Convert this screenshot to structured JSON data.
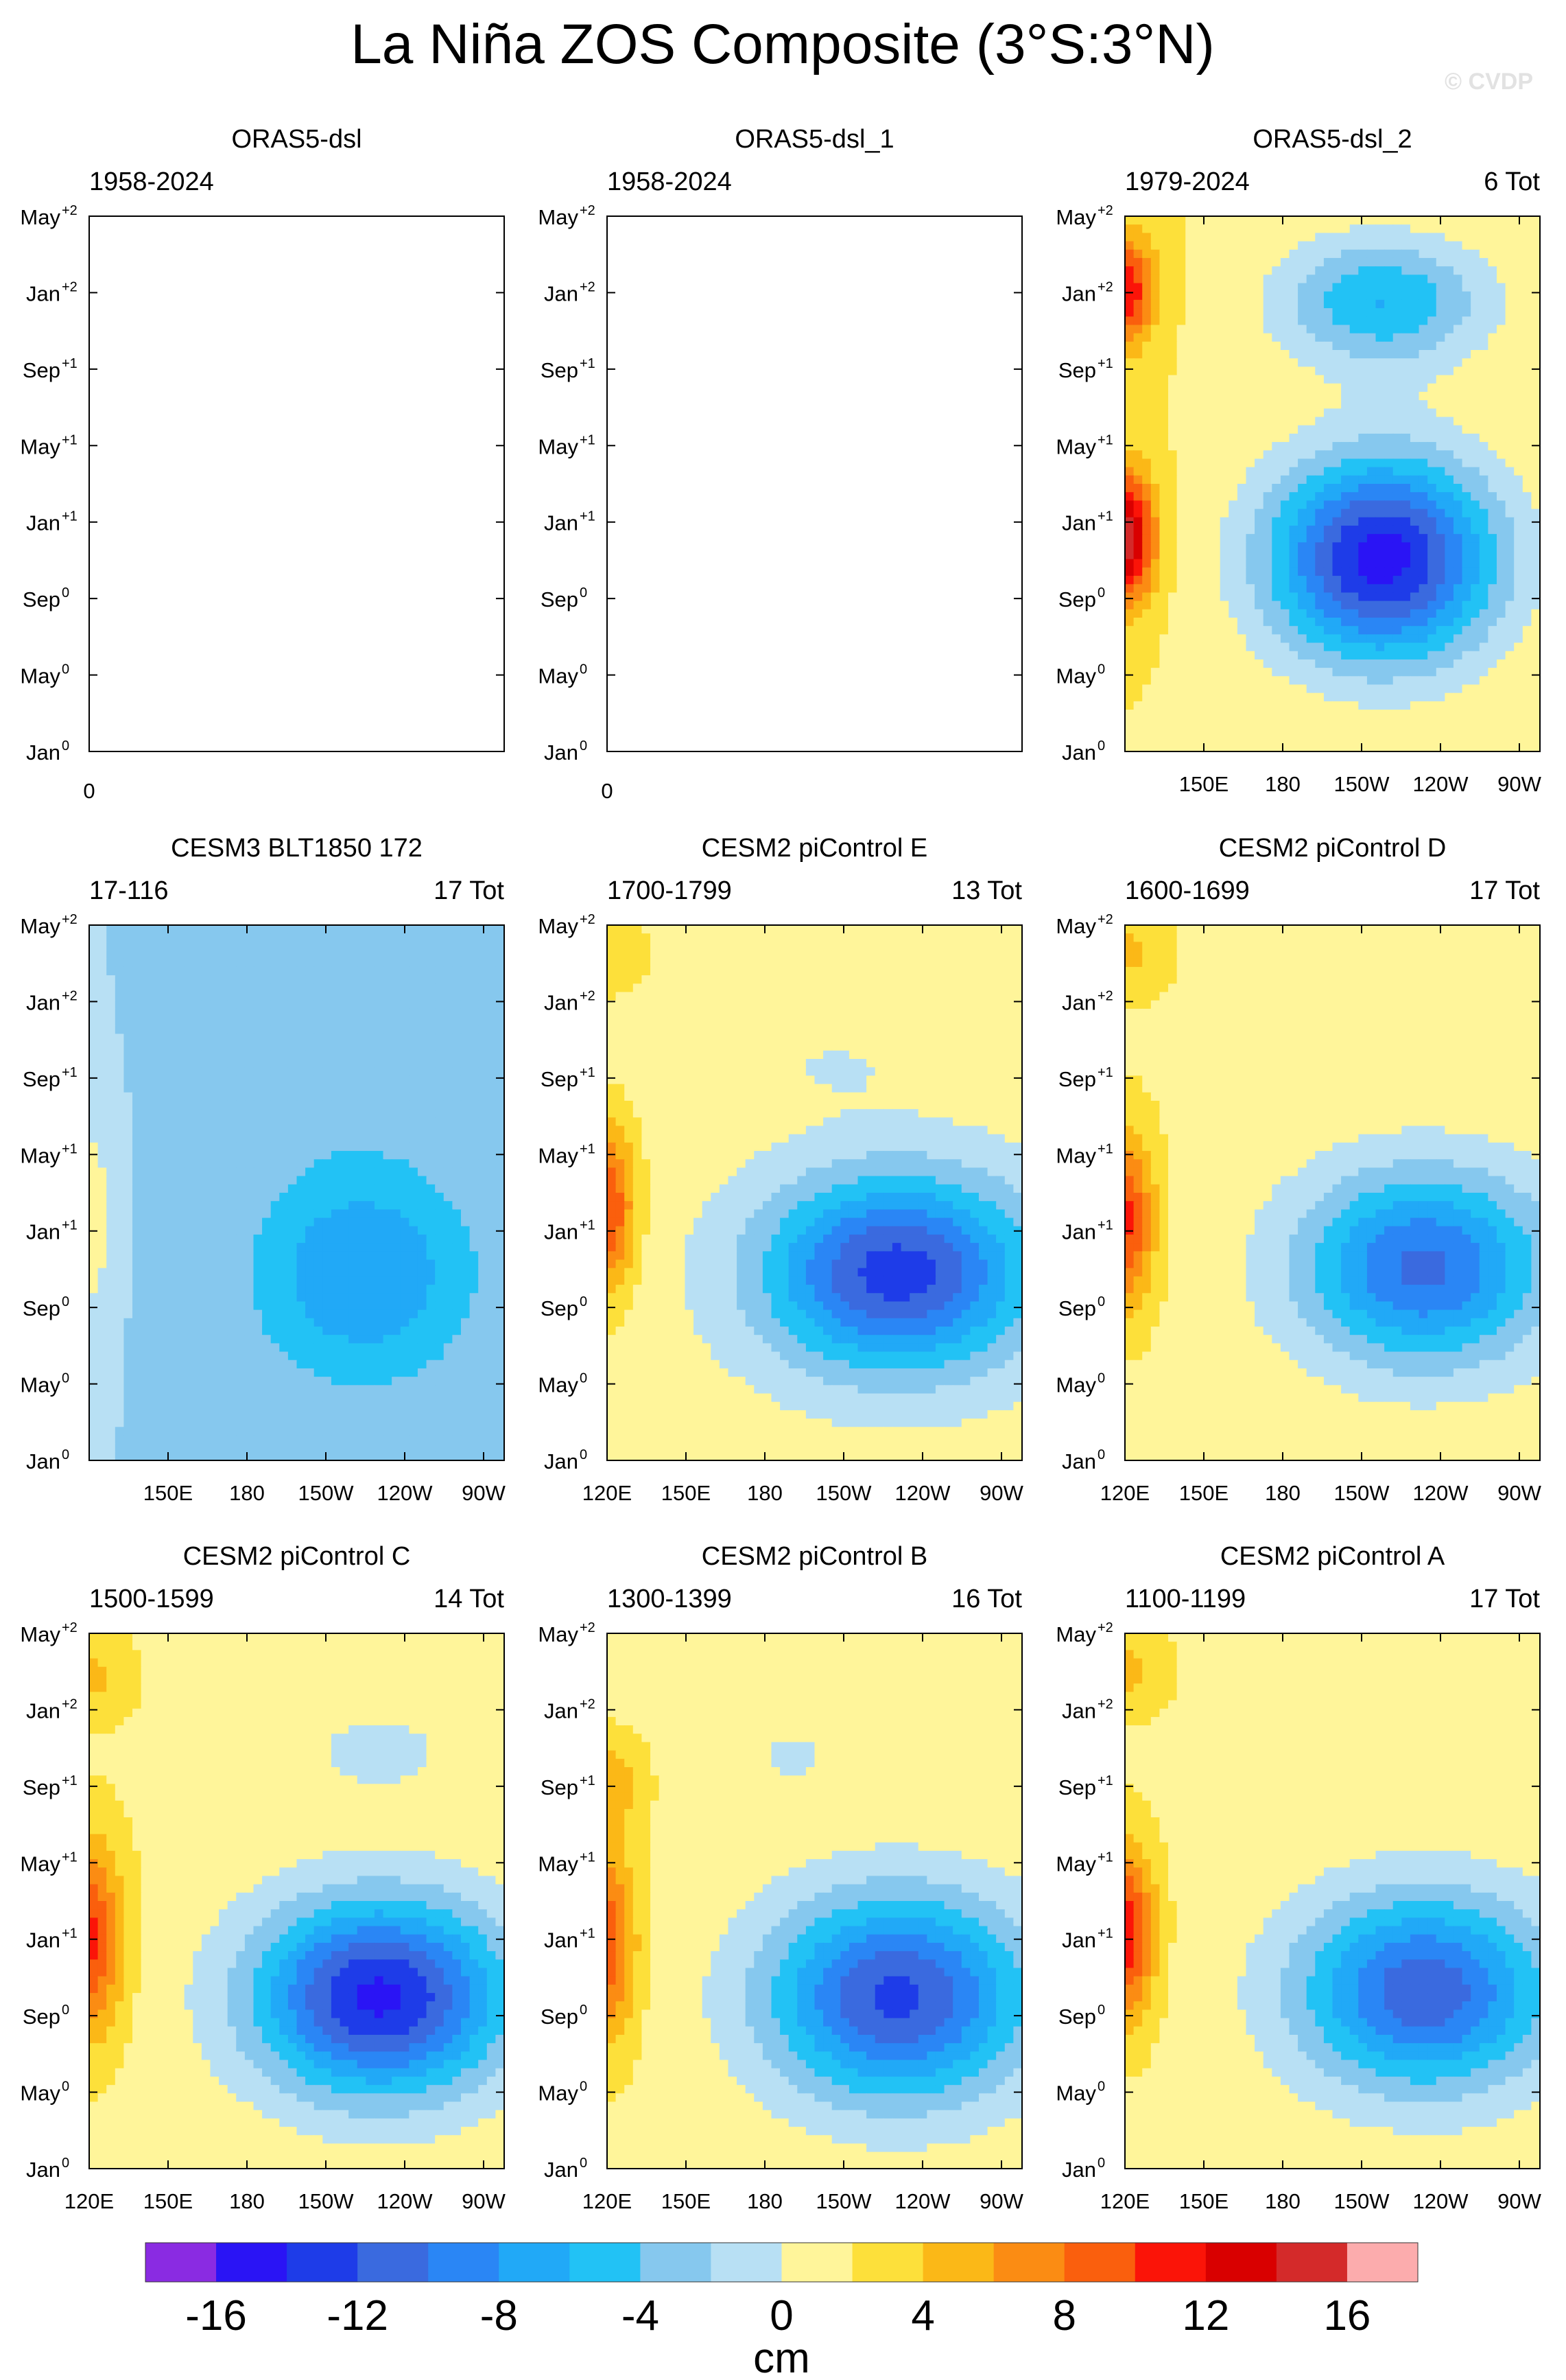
{
  "title": "La Niña ZOS Composite (3°S:3°N)",
  "watermark": "© CVDP",
  "colors": {
    "palette": [
      "#8a2be2",
      "#2a14f5",
      "#1e3ce8",
      "#3a6adf",
      "#2a86f5",
      "#21a9f7",
      "#22c2f5",
      "#86c8ee",
      "#b8e0f4",
      "#fff59a",
      "#fde03a",
      "#fbb817",
      "#fb8c13",
      "#fa5f0d",
      "#fb1408",
      "#d90000",
      "#d42a2a",
      "#fcacad"
    ]
  },
  "colorbar": {
    "labels": [
      "-16",
      "-12",
      "-8",
      "-4",
      "0",
      "4",
      "8",
      "12",
      "16"
    ],
    "unit": "cm"
  },
  "chart_data": {
    "type": "heatmap",
    "levels": [
      -16,
      -14,
      -12,
      -10,
      -8,
      -6,
      -4,
      -2,
      0,
      2,
      4,
      6,
      8,
      10,
      12,
      14,
      16
    ],
    "y_ticks": [
      "Jan",
      "May",
      "Sep",
      "Jan",
      "May",
      "Sep",
      "Jan",
      "May"
    ],
    "y_sup": [
      "0",
      "0",
      "0",
      "+1",
      "+1",
      "+1",
      "+2",
      "+2"
    ],
    "x_ticks": [
      "120E",
      "150E",
      "180",
      "150W",
      "120W",
      "90W"
    ],
    "panels": [
      {
        "title": "ORAS5-dsl",
        "years": "1958-2024",
        "count": "",
        "empty": true,
        "x_ticks": [
          "0"
        ]
      },
      {
        "title": "ORAS5-dsl_1",
        "years": "1958-2024",
        "count": "",
        "empty": true,
        "x_ticks": [
          "0"
        ]
      },
      {
        "title": "ORAS5-dsl_2",
        "years": "1979-2024",
        "count": "6 Tot",
        "empty": false,
        "x_ticks": [
          "150E",
          "180",
          "150W",
          "120W",
          "90W"
        ],
        "field": {
          "bg": 2,
          "west": [
            {
              "y": 0.4,
              "amp": 14,
              "w": 0.07,
              "h": 0.12
            },
            {
              "y": 0.86,
              "amp": 10,
              "w": 0.07,
              "h": 0.1
            }
          ],
          "east": [
            {
              "x": 0.62,
              "y": 0.36,
              "amp": -17,
              "w": 0.27,
              "h": 0.19
            },
            {
              "x": 0.62,
              "y": 0.84,
              "amp": -8,
              "w": 0.25,
              "h": 0.12
            }
          ]
        }
      },
      {
        "title": "CESM3 BLT1850 172",
        "years": "17-116",
        "count": "17 Tot",
        "empty": false,
        "x_ticks": [
          "150E",
          "180",
          "150W",
          "120W",
          "90W"
        ],
        "field": {
          "bg": -2,
          "west": [
            {
              "y": 0.45,
              "amp": 4,
              "w": 0.05,
              "h": 0.18
            }
          ],
          "east": [
            {
              "x": 0.66,
              "y": 0.35,
              "amp": -6,
              "w": 0.26,
              "h": 0.2
            },
            {
              "x": 0.62,
              "y": 0.74,
              "amp": -1.5,
              "w": 0.25,
              "h": 0.14
            }
          ]
        }
      },
      {
        "title": "CESM2 piControl E",
        "years": "1700-1799",
        "count": "13 Tot",
        "empty": false,
        "x_ticks": [
          "120E",
          "150E",
          "180",
          "150W",
          "120W",
          "90W"
        ],
        "field": {
          "bg": 1,
          "west": [
            {
              "y": 0.47,
              "amp": 9,
              "w": 0.07,
              "h": 0.16
            },
            {
              "y": 0.95,
              "amp": 3,
              "w": 0.1,
              "h": 0.08
            }
          ],
          "east": [
            {
              "x": 0.7,
              "y": 0.35,
              "amp": -14,
              "w": 0.32,
              "h": 0.18
            },
            {
              "x": 0.55,
              "y": 0.74,
              "amp": -1,
              "w": 0.22,
              "h": 0.08
            }
          ]
        }
      },
      {
        "title": "CESM2 piControl D",
        "years": "1600-1699",
        "count": "17 Tot",
        "empty": false,
        "x_ticks": [
          "120E",
          "150E",
          "180",
          "150W",
          "120W",
          "90W"
        ],
        "field": {
          "bg": 1.5,
          "west": [
            {
              "y": 0.45,
              "amp": 9,
              "w": 0.07,
              "h": 0.16
            },
            {
              "y": 0.95,
              "amp": 3,
              "w": 0.1,
              "h": 0.08
            }
          ],
          "east": [
            {
              "x": 0.72,
              "y": 0.36,
              "amp": -12,
              "w": 0.3,
              "h": 0.18
            }
          ]
        }
      },
      {
        "title": "CESM2 piControl C",
        "years": "1500-1599",
        "count": "14 Tot",
        "empty": false,
        "x_ticks": [
          "120E",
          "150E",
          "180",
          "150W",
          "120W",
          "90W"
        ],
        "field": {
          "bg": 1.5,
          "west": [
            {
              "y": 0.43,
              "amp": 9,
              "w": 0.08,
              "h": 0.18
            },
            {
              "y": 0.92,
              "amp": 3,
              "w": 0.1,
              "h": 0.08
            }
          ],
          "east": [
            {
              "x": 0.7,
              "y": 0.32,
              "amp": -16,
              "w": 0.3,
              "h": 0.18
            },
            {
              "x": 0.7,
              "y": 0.78,
              "amp": -2,
              "w": 0.22,
              "h": 0.1
            }
          ]
        }
      },
      {
        "title": "CESM2 piControl B",
        "years": "1300-1399",
        "count": "16 Tot",
        "empty": false,
        "x_ticks": [
          "120E",
          "150E",
          "180",
          "150W",
          "120W",
          "90W"
        ],
        "field": {
          "bg": 1.5,
          "west": [
            {
              "y": 0.42,
              "amp": 8,
              "w": 0.07,
              "h": 0.18
            },
            {
              "y": 0.72,
              "amp": 4,
              "w": 0.08,
              "h": 0.08
            }
          ],
          "east": [
            {
              "x": 0.7,
              "y": 0.32,
              "amp": -14,
              "w": 0.31,
              "h": 0.19
            },
            {
              "x": 0.45,
              "y": 0.77,
              "amp": -2,
              "w": 0.1,
              "h": 0.06
            }
          ]
        }
      },
      {
        "title": "CESM2 piControl A",
        "years": "1100-1199",
        "count": "17 Tot",
        "empty": false,
        "x_ticks": [
          "120E",
          "150E",
          "180",
          "150W",
          "120W",
          "90W"
        ],
        "field": {
          "bg": 1.5,
          "west": [
            {
              "y": 0.44,
              "amp": 10,
              "w": 0.07,
              "h": 0.16
            },
            {
              "y": 0.93,
              "amp": 3,
              "w": 0.1,
              "h": 0.08
            }
          ],
          "east": [
            {
              "x": 0.72,
              "y": 0.33,
              "amp": -13,
              "w": 0.3,
              "h": 0.18
            }
          ]
        }
      }
    ]
  }
}
